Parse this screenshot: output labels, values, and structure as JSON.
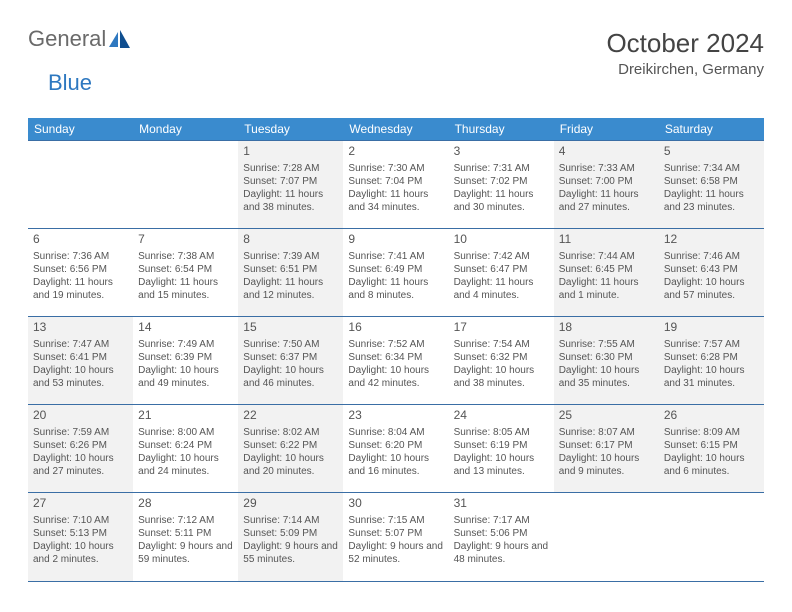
{
  "brand": {
    "part1": "General",
    "part2": "Blue"
  },
  "title": "October 2024",
  "location": "Dreikirchen, Germany",
  "colors": {
    "header_bg": "#3a8bce",
    "header_text": "#ffffff",
    "border": "#3a6ea5",
    "shade_bg": "#f2f2f2",
    "text": "#555555",
    "brand_gray": "#6a6a6a",
    "brand_blue": "#2e78c0"
  },
  "dow": [
    "Sunday",
    "Monday",
    "Tuesday",
    "Wednesday",
    "Thursday",
    "Friday",
    "Saturday"
  ],
  "weeks": [
    [
      null,
      null,
      {
        "n": "1",
        "sr": "Sunrise: 7:28 AM",
        "ss": "Sunset: 7:07 PM",
        "dl": "Daylight: 11 hours and 38 minutes.",
        "sh": true
      },
      {
        "n": "2",
        "sr": "Sunrise: 7:30 AM",
        "ss": "Sunset: 7:04 PM",
        "dl": "Daylight: 11 hours and 34 minutes."
      },
      {
        "n": "3",
        "sr": "Sunrise: 7:31 AM",
        "ss": "Sunset: 7:02 PM",
        "dl": "Daylight: 11 hours and 30 minutes."
      },
      {
        "n": "4",
        "sr": "Sunrise: 7:33 AM",
        "ss": "Sunset: 7:00 PM",
        "dl": "Daylight: 11 hours and 27 minutes.",
        "sh": true
      },
      {
        "n": "5",
        "sr": "Sunrise: 7:34 AM",
        "ss": "Sunset: 6:58 PM",
        "dl": "Daylight: 11 hours and 23 minutes.",
        "sh": true
      }
    ],
    [
      {
        "n": "6",
        "sr": "Sunrise: 7:36 AM",
        "ss": "Sunset: 6:56 PM",
        "dl": "Daylight: 11 hours and 19 minutes."
      },
      {
        "n": "7",
        "sr": "Sunrise: 7:38 AM",
        "ss": "Sunset: 6:54 PM",
        "dl": "Daylight: 11 hours and 15 minutes."
      },
      {
        "n": "8",
        "sr": "Sunrise: 7:39 AM",
        "ss": "Sunset: 6:51 PM",
        "dl": "Daylight: 11 hours and 12 minutes.",
        "sh": true
      },
      {
        "n": "9",
        "sr": "Sunrise: 7:41 AM",
        "ss": "Sunset: 6:49 PM",
        "dl": "Daylight: 11 hours and 8 minutes."
      },
      {
        "n": "10",
        "sr": "Sunrise: 7:42 AM",
        "ss": "Sunset: 6:47 PM",
        "dl": "Daylight: 11 hours and 4 minutes."
      },
      {
        "n": "11",
        "sr": "Sunrise: 7:44 AM",
        "ss": "Sunset: 6:45 PM",
        "dl": "Daylight: 11 hours and 1 minute.",
        "sh": true
      },
      {
        "n": "12",
        "sr": "Sunrise: 7:46 AM",
        "ss": "Sunset: 6:43 PM",
        "dl": "Daylight: 10 hours and 57 minutes.",
        "sh": true
      }
    ],
    [
      {
        "n": "13",
        "sr": "Sunrise: 7:47 AM",
        "ss": "Sunset: 6:41 PM",
        "dl": "Daylight: 10 hours and 53 minutes.",
        "sh": true
      },
      {
        "n": "14",
        "sr": "Sunrise: 7:49 AM",
        "ss": "Sunset: 6:39 PM",
        "dl": "Daylight: 10 hours and 49 minutes."
      },
      {
        "n": "15",
        "sr": "Sunrise: 7:50 AM",
        "ss": "Sunset: 6:37 PM",
        "dl": "Daylight: 10 hours and 46 minutes.",
        "sh": true
      },
      {
        "n": "16",
        "sr": "Sunrise: 7:52 AM",
        "ss": "Sunset: 6:34 PM",
        "dl": "Daylight: 10 hours and 42 minutes."
      },
      {
        "n": "17",
        "sr": "Sunrise: 7:54 AM",
        "ss": "Sunset: 6:32 PM",
        "dl": "Daylight: 10 hours and 38 minutes."
      },
      {
        "n": "18",
        "sr": "Sunrise: 7:55 AM",
        "ss": "Sunset: 6:30 PM",
        "dl": "Daylight: 10 hours and 35 minutes.",
        "sh": true
      },
      {
        "n": "19",
        "sr": "Sunrise: 7:57 AM",
        "ss": "Sunset: 6:28 PM",
        "dl": "Daylight: 10 hours and 31 minutes.",
        "sh": true
      }
    ],
    [
      {
        "n": "20",
        "sr": "Sunrise: 7:59 AM",
        "ss": "Sunset: 6:26 PM",
        "dl": "Daylight: 10 hours and 27 minutes.",
        "sh": true
      },
      {
        "n": "21",
        "sr": "Sunrise: 8:00 AM",
        "ss": "Sunset: 6:24 PM",
        "dl": "Daylight: 10 hours and 24 minutes."
      },
      {
        "n": "22",
        "sr": "Sunrise: 8:02 AM",
        "ss": "Sunset: 6:22 PM",
        "dl": "Daylight: 10 hours and 20 minutes.",
        "sh": true
      },
      {
        "n": "23",
        "sr": "Sunrise: 8:04 AM",
        "ss": "Sunset: 6:20 PM",
        "dl": "Daylight: 10 hours and 16 minutes."
      },
      {
        "n": "24",
        "sr": "Sunrise: 8:05 AM",
        "ss": "Sunset: 6:19 PM",
        "dl": "Daylight: 10 hours and 13 minutes."
      },
      {
        "n": "25",
        "sr": "Sunrise: 8:07 AM",
        "ss": "Sunset: 6:17 PM",
        "dl": "Daylight: 10 hours and 9 minutes.",
        "sh": true
      },
      {
        "n": "26",
        "sr": "Sunrise: 8:09 AM",
        "ss": "Sunset: 6:15 PM",
        "dl": "Daylight: 10 hours and 6 minutes.",
        "sh": true
      }
    ],
    [
      {
        "n": "27",
        "sr": "Sunrise: 7:10 AM",
        "ss": "Sunset: 5:13 PM",
        "dl": "Daylight: 10 hours and 2 minutes.",
        "sh": true
      },
      {
        "n": "28",
        "sr": "Sunrise: 7:12 AM",
        "ss": "Sunset: 5:11 PM",
        "dl": "Daylight: 9 hours and 59 minutes."
      },
      {
        "n": "29",
        "sr": "Sunrise: 7:14 AM",
        "ss": "Sunset: 5:09 PM",
        "dl": "Daylight: 9 hours and 55 minutes.",
        "sh": true
      },
      {
        "n": "30",
        "sr": "Sunrise: 7:15 AM",
        "ss": "Sunset: 5:07 PM",
        "dl": "Daylight: 9 hours and 52 minutes."
      },
      {
        "n": "31",
        "sr": "Sunrise: 7:17 AM",
        "ss": "Sunset: 5:06 PM",
        "dl": "Daylight: 9 hours and 48 minutes."
      },
      null,
      null
    ]
  ]
}
